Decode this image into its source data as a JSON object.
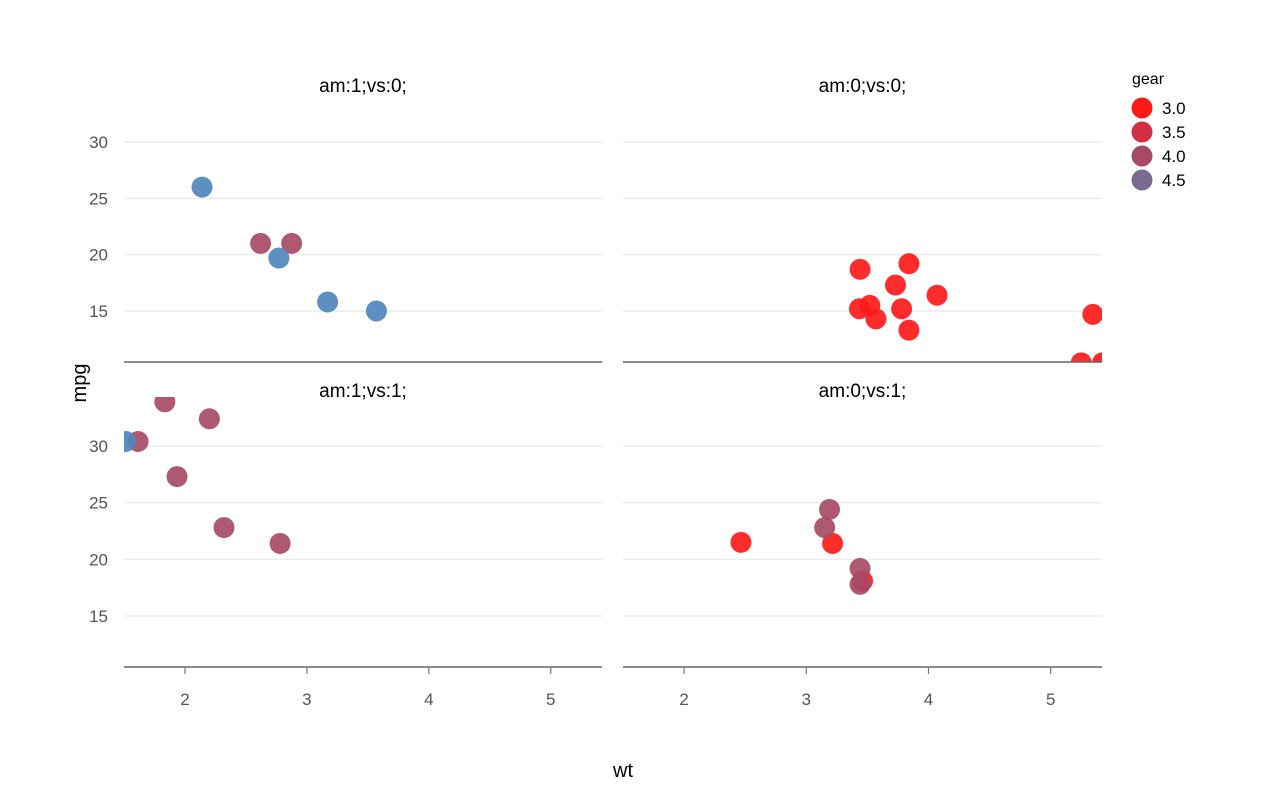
{
  "chart_data": {
    "type": "scatter",
    "facet": "am x vs",
    "xlabel": "wt",
    "ylabel": "mpg",
    "xlim": [
      1.5,
      5.42
    ],
    "xticks": [
      2,
      3,
      4,
      5
    ],
    "legend": {
      "title": "gear",
      "placement": "top-right",
      "entries": [
        {
          "label": "3.0",
          "color": "#ff1a1a"
        },
        {
          "label": "3.5",
          "color": "#d12f45"
        },
        {
          "label": "4.0",
          "color": "#a74a66"
        },
        {
          "label": "4.5",
          "color": "#7b6a90"
        }
      ]
    },
    "gear_colors": {
      "3": "#ff1a1a",
      "4": "#a74a66",
      "5": "#4f87bb"
    },
    "panels": [
      {
        "title": "am:1;vs:0;",
        "ylim": [
          10.4,
          33.9
        ],
        "yticks": [
          15,
          20,
          25,
          30
        ],
        "points": [
          {
            "x": 2.14,
            "y": 26.0,
            "gear": 5
          },
          {
            "x": 2.62,
            "y": 21.0,
            "gear": 4
          },
          {
            "x": 2.875,
            "y": 21.0,
            "gear": 4
          },
          {
            "x": 2.77,
            "y": 19.7,
            "gear": 5
          },
          {
            "x": 3.17,
            "y": 15.8,
            "gear": 5
          },
          {
            "x": 3.57,
            "y": 15.0,
            "gear": 5
          }
        ]
      },
      {
        "title": "am:0;vs:0;",
        "ylim": [
          10.4,
          33.9
        ],
        "yticks": [
          15,
          20,
          25,
          30
        ],
        "points": [
          {
            "x": 3.44,
            "y": 18.7,
            "gear": 3
          },
          {
            "x": 3.84,
            "y": 19.2,
            "gear": 3
          },
          {
            "x": 3.73,
            "y": 17.3,
            "gear": 3
          },
          {
            "x": 4.07,
            "y": 16.4,
            "gear": 3
          },
          {
            "x": 3.52,
            "y": 15.5,
            "gear": 3
          },
          {
            "x": 3.435,
            "y": 15.2,
            "gear": 3
          },
          {
            "x": 3.78,
            "y": 15.2,
            "gear": 3
          },
          {
            "x": 3.57,
            "y": 14.3,
            "gear": 3
          },
          {
            "x": 3.84,
            "y": 13.3,
            "gear": 3
          },
          {
            "x": 5.345,
            "y": 14.7,
            "gear": 3
          },
          {
            "x": 5.25,
            "y": 10.4,
            "gear": 3
          },
          {
            "x": 5.424,
            "y": 10.4,
            "gear": 3
          }
        ]
      },
      {
        "title": "am:1;vs:1;",
        "ylim": [
          10.4,
          33.9
        ],
        "yticks": [
          15,
          20,
          25,
          30
        ],
        "points": [
          {
            "x": 1.835,
            "y": 33.9,
            "gear": 4
          },
          {
            "x": 2.2,
            "y": 32.4,
            "gear": 4
          },
          {
            "x": 1.615,
            "y": 30.4,
            "gear": 4
          },
          {
            "x": 1.513,
            "y": 30.4,
            "gear": 5
          },
          {
            "x": 1.935,
            "y": 27.3,
            "gear": 4
          },
          {
            "x": 2.32,
            "y": 22.8,
            "gear": 4
          },
          {
            "x": 2.78,
            "y": 21.4,
            "gear": 4
          }
        ]
      },
      {
        "title": "am:0;vs:1;",
        "ylim": [
          10.4,
          33.9
        ],
        "yticks": [
          15,
          20,
          25,
          30
        ],
        "points": [
          {
            "x": 2.465,
            "y": 21.5,
            "gear": 3
          },
          {
            "x": 3.215,
            "y": 21.4,
            "gear": 3
          },
          {
            "x": 3.46,
            "y": 18.1,
            "gear": 3
          },
          {
            "x": 3.19,
            "y": 24.4,
            "gear": 4
          },
          {
            "x": 3.15,
            "y": 22.8,
            "gear": 4
          },
          {
            "x": 3.44,
            "y": 19.2,
            "gear": 4
          },
          {
            "x": 3.44,
            "y": 17.8,
            "gear": 4
          }
        ]
      }
    ]
  }
}
